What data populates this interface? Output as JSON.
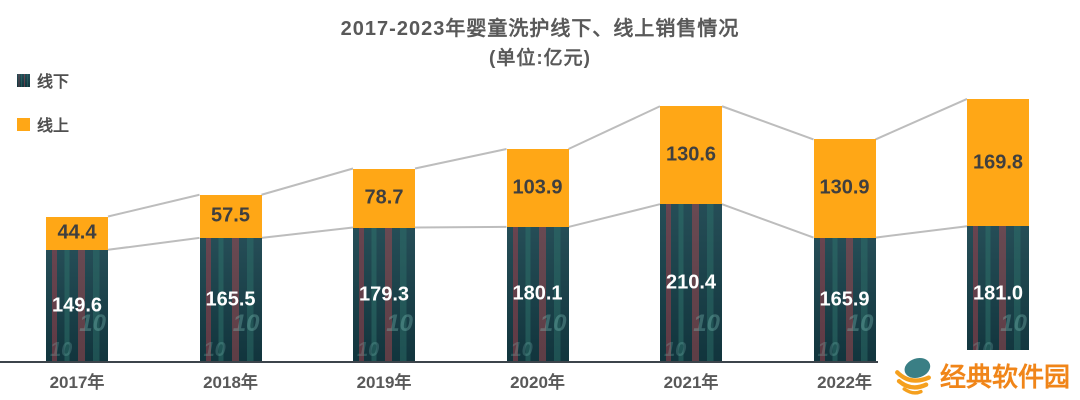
{
  "chart_data": {
    "type": "bar",
    "stacked": true,
    "title": "2017-2023年婴童洗护线下、线上销售情况",
    "subtitle": "(单位:亿元)",
    "categories": [
      "2017年",
      "2018年",
      "2019年",
      "2020年",
      "2021年",
      "2022年",
      "2023年"
    ],
    "series": [
      {
        "name": "线下",
        "values": [
          149.6,
          165.5,
          179.3,
          180.1,
          210.4,
          165.9,
          181.0
        ],
        "color": "#15404a",
        "label_color": "#ffffff"
      },
      {
        "name": "线上",
        "values": [
          44.4,
          57.5,
          78.7,
          103.9,
          130.6,
          130.9,
          169.8
        ],
        "color": "#FFA716",
        "label_color": "#3f3f3f"
      }
    ],
    "ylim": [
      0,
      360
    ],
    "grid": false,
    "legend_position": "top-left",
    "connector_line_color": "#BDBDBD",
    "axis_line_color": "#3c444b",
    "texture_glyph": "10"
  },
  "watermark": {
    "text": "经典软件园",
    "accent_color": "#F08519",
    "globe_teal": "#3A7F85",
    "globe_orange": "#F5A01E"
  }
}
